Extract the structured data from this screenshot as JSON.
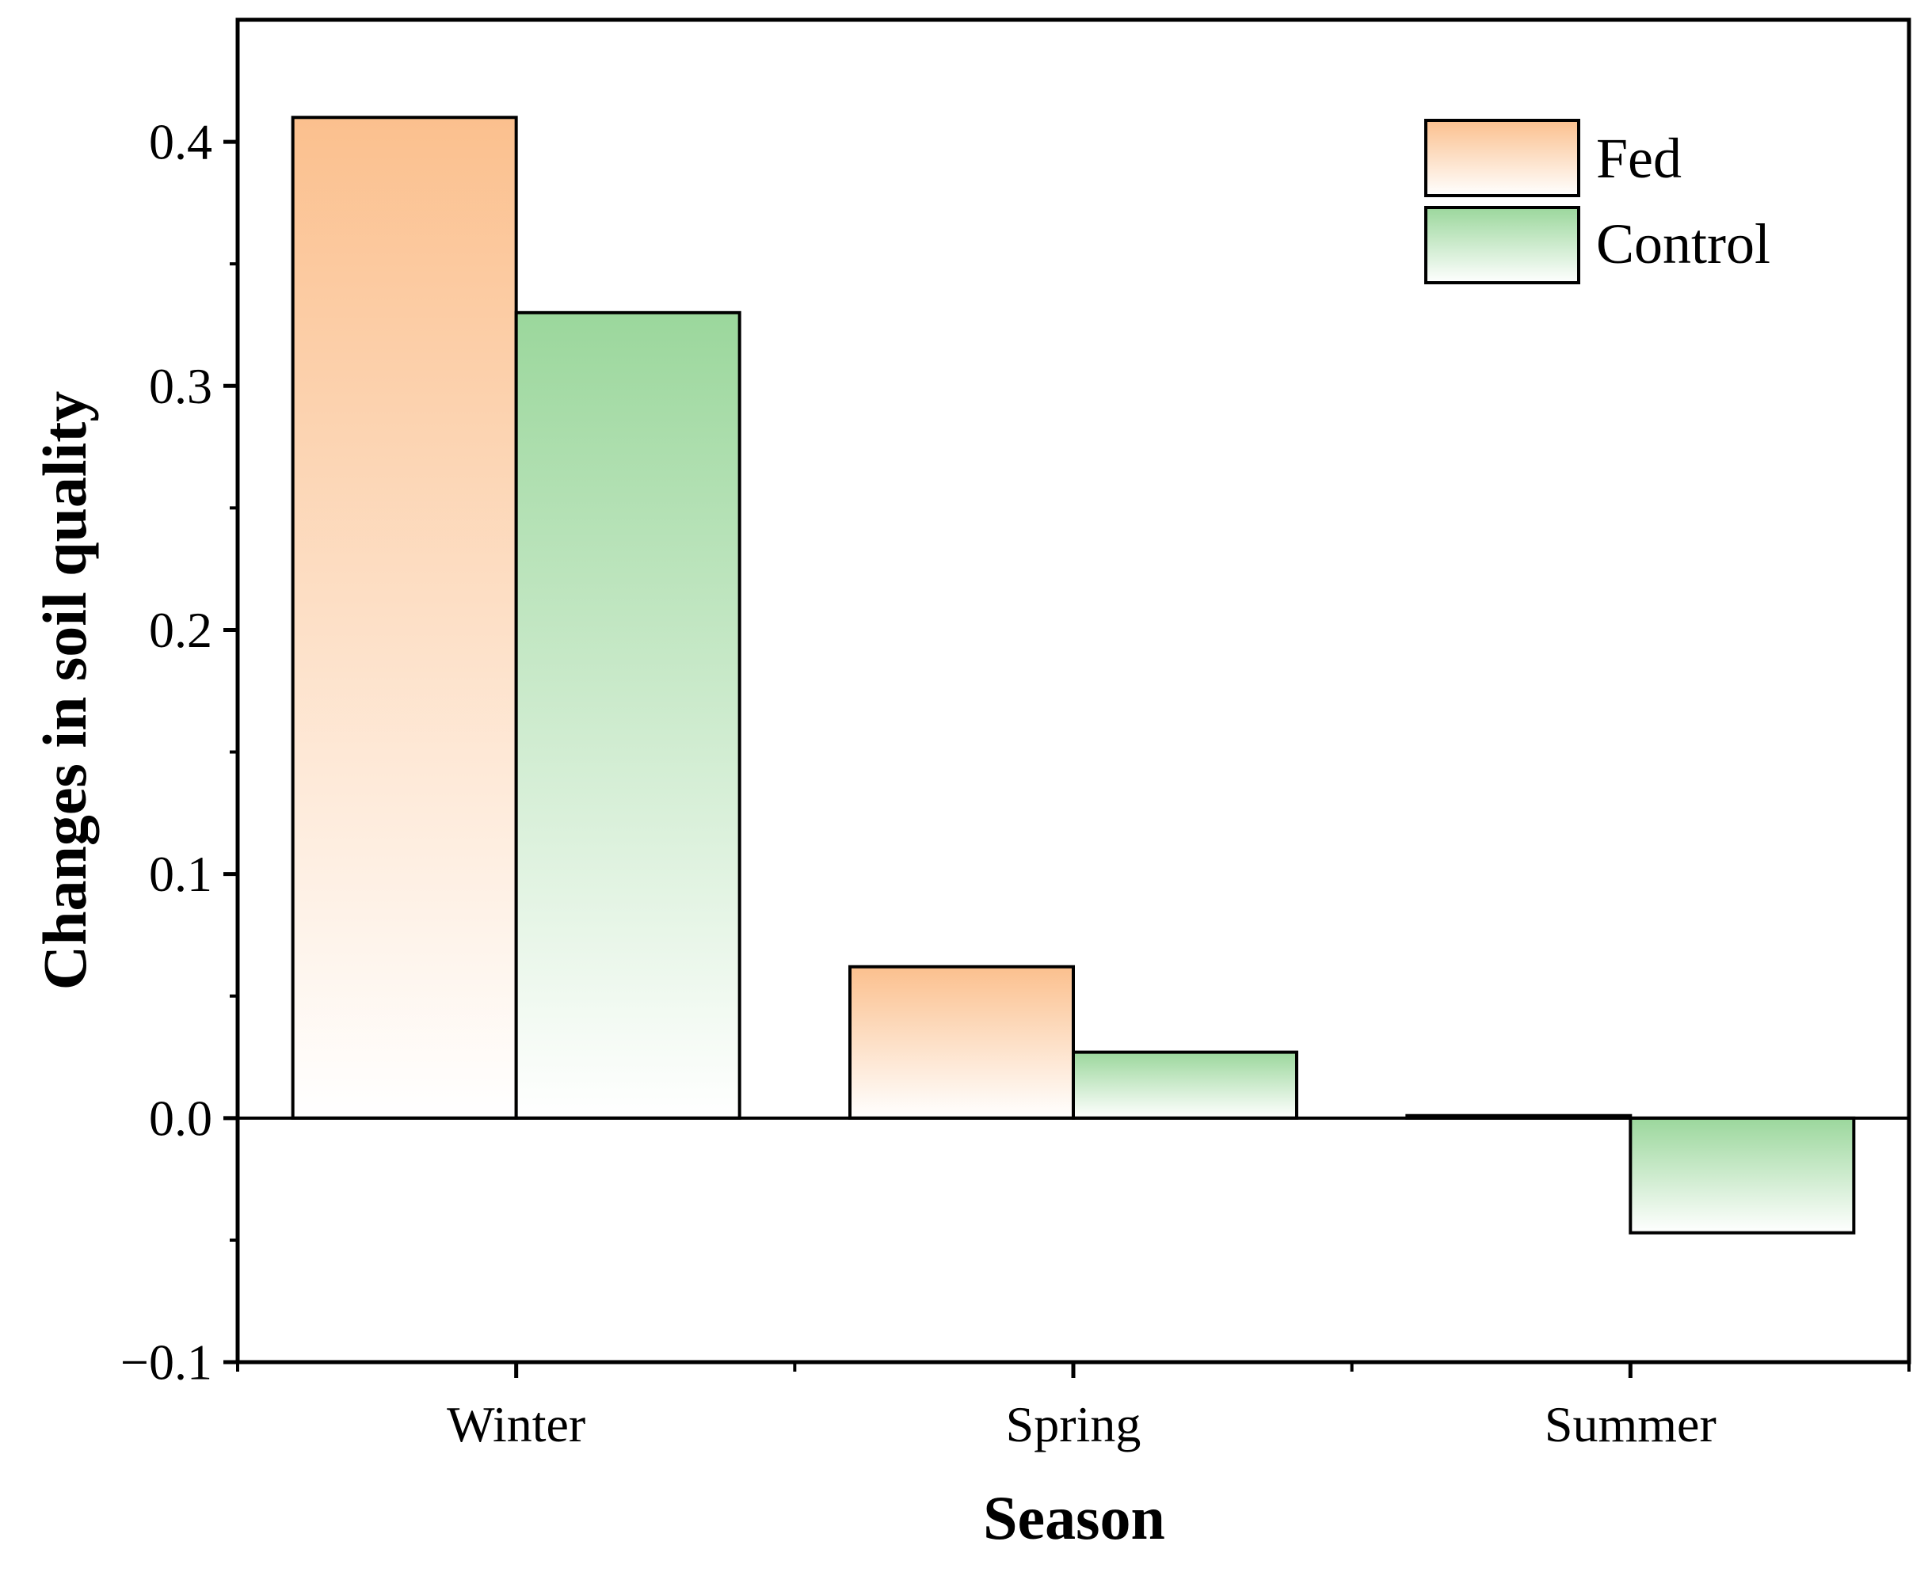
{
  "chart_data": {
    "type": "bar",
    "categories": [
      "Winter",
      "Spring",
      "Summer"
    ],
    "series": [
      {
        "name": "Fed",
        "values": [
          0.41,
          0.062,
          0.001
        ],
        "color": "#fbc08e"
      },
      {
        "name": "Control",
        "values": [
          0.33,
          0.027,
          -0.047
        ],
        "color": "#9bd79c"
      }
    ],
    "xlabel": "Season",
    "ylabel": "Changes in soil quality",
    "ylim": [
      -0.1,
      0.45
    ],
    "yticks": [
      -0.1,
      0.0,
      0.1,
      0.2,
      0.3,
      0.4
    ],
    "ytick_labels": [
      "−0.1",
      "0.0",
      "0.1",
      "0.2",
      "0.3",
      "0.4"
    ],
    "zero_line": true,
    "legend_position": "top-right",
    "grid": false
  }
}
